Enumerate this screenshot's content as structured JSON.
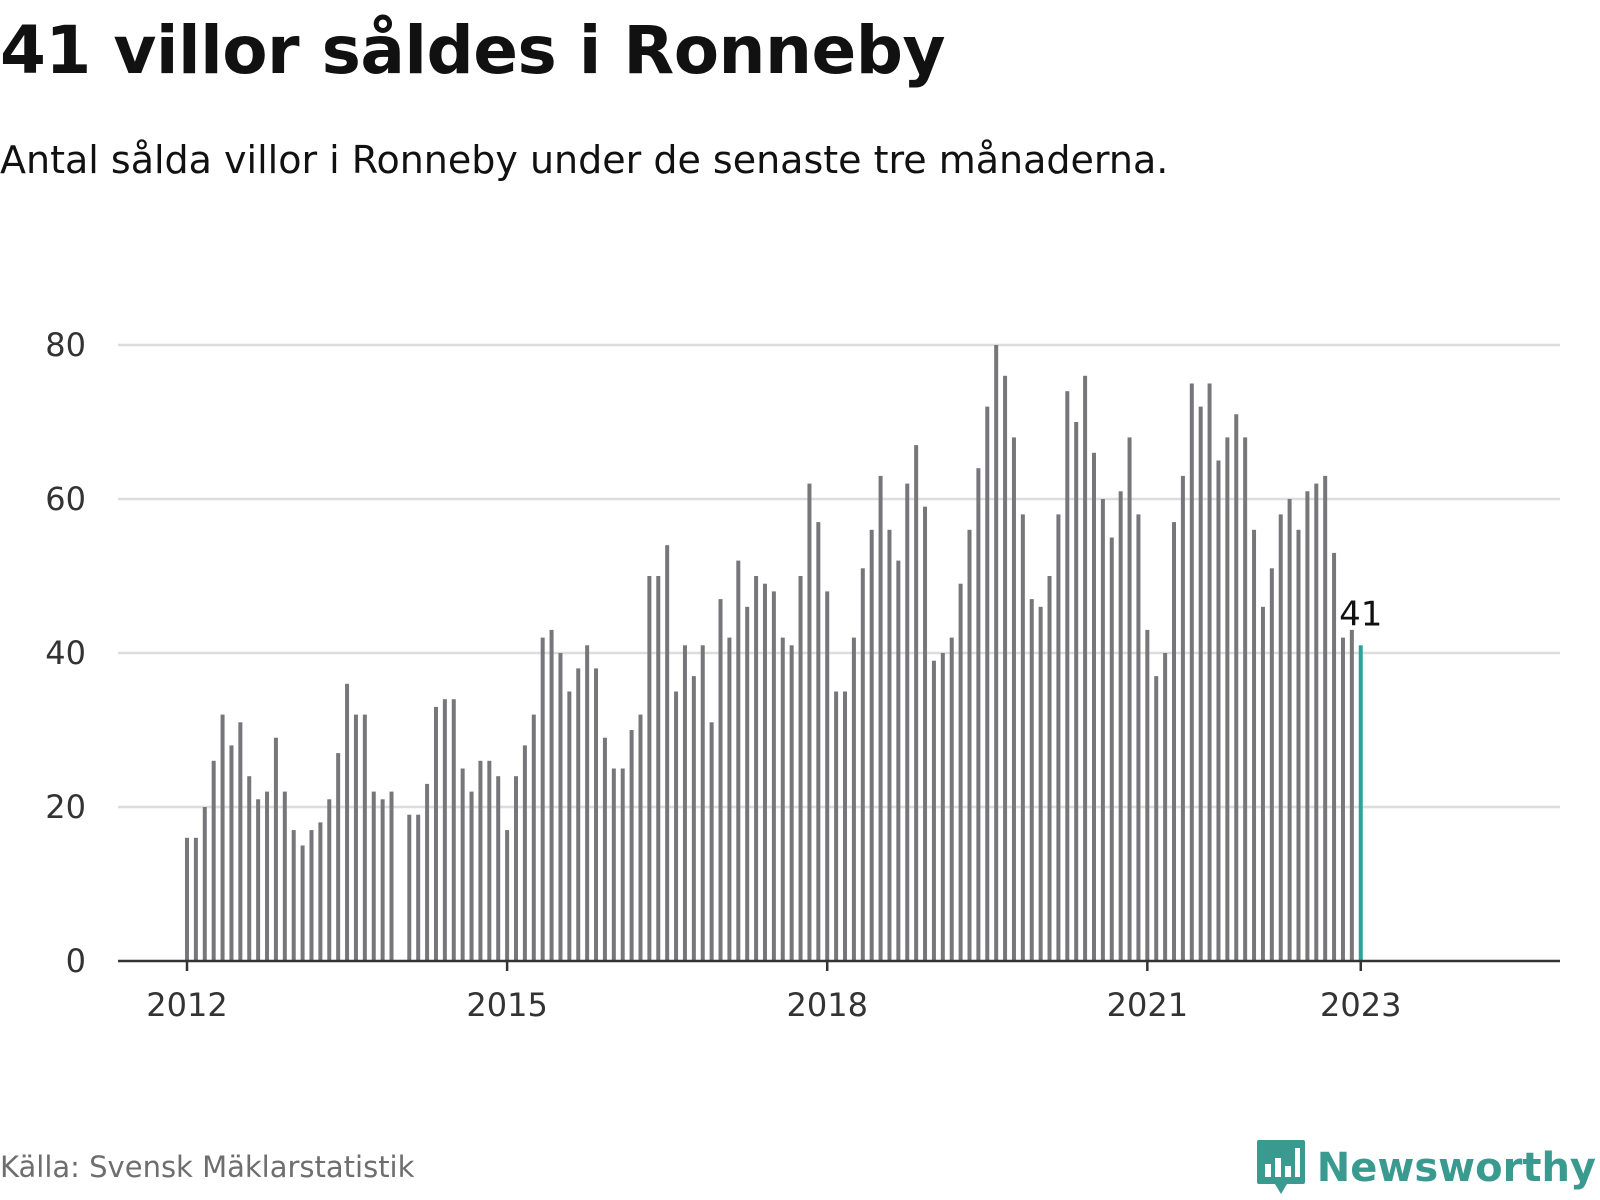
{
  "title": "41 villor såldes i Ronneby",
  "subtitle": "Antal sålda villor i Ronneby under de senaste tre månaderna.",
  "source": "Källa: Svensk Mäklarstatistik",
  "brand": "Newsworthy",
  "brand_icon": "bar-chart-speech-bubble-icon",
  "colors": {
    "bar": "#76767b",
    "highlight": "#2aa39a",
    "grid": "#dddddd",
    "axis": "#333333",
    "brand": "#3a9a8f"
  },
  "chart_data": {
    "type": "bar",
    "title": "41 villor såldes i Ronneby",
    "xlabel": "",
    "ylabel": "",
    "ylim": [
      0,
      80
    ],
    "yticks": [
      "0",
      "20",
      "40",
      "60",
      "80"
    ],
    "xtick_labels": [
      {
        "label": "2012",
        "month": "2012-01"
      },
      {
        "label": "2015",
        "month": "2015-01"
      },
      {
        "label": "2018",
        "month": "2018-01"
      },
      {
        "label": "2021",
        "month": "2021-01"
      },
      {
        "label": "2023",
        "month": "2023-01"
      }
    ],
    "grid": true,
    "start_month": "2012-01",
    "values": [
      16,
      16,
      20,
      26,
      32,
      28,
      31,
      24,
      21,
      22,
      29,
      22,
      17,
      15,
      17,
      18,
      21,
      27,
      36,
      32,
      32,
      22,
      21,
      22,
      null,
      19,
      19,
      23,
      33,
      34,
      34,
      25,
      22,
      26,
      26,
      24,
      17,
      24,
      28,
      32,
      42,
      43,
      40,
      35,
      38,
      41,
      38,
      29,
      25,
      25,
      30,
      32,
      50,
      50,
      54,
      35,
      41,
      37,
      41,
      31,
      47,
      42,
      52,
      46,
      50,
      49,
      48,
      42,
      41,
      50,
      62,
      57,
      48,
      35,
      35,
      42,
      51,
      56,
      63,
      56,
      52,
      62,
      67,
      59,
      39,
      40,
      42,
      49,
      56,
      64,
      72,
      80,
      76,
      68,
      58,
      47,
      46,
      50,
      58,
      74,
      70,
      76,
      66,
      60,
      55,
      61,
      68,
      58,
      43,
      37,
      40,
      57,
      63,
      75,
      72,
      75,
      65,
      68,
      71,
      68,
      56,
      46,
      51,
      58,
      60,
      56,
      61,
      62,
      63,
      53,
      42,
      43,
      41
    ],
    "highlight_label": "41"
  }
}
